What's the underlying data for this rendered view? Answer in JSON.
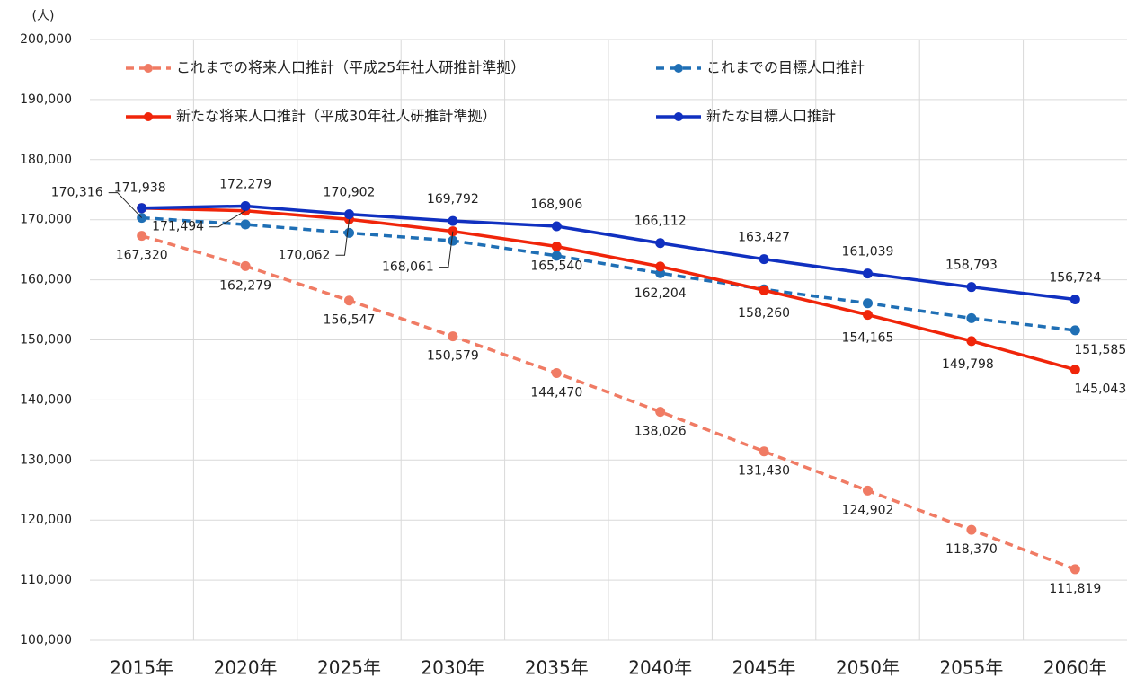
{
  "chart_data": {
    "type": "line",
    "y_label": "(人)",
    "categories": [
      "2015年",
      "2020年",
      "2025年",
      "2030年",
      "2035年",
      "2040年",
      "2045年",
      "2050年",
      "2055年",
      "2060年"
    ],
    "ylim": [
      100000,
      200000
    ],
    "yticks": [
      {
        "value": 100000,
        "label": "100,000"
      },
      {
        "value": 110000,
        "label": "110,000"
      },
      {
        "value": 120000,
        "label": "120,000"
      },
      {
        "value": 130000,
        "label": "130,000"
      },
      {
        "value": 140000,
        "label": "140,000"
      },
      {
        "value": 150000,
        "label": "150,000"
      },
      {
        "value": 160000,
        "label": "160,000"
      },
      {
        "value": 170000,
        "label": "170,000"
      },
      {
        "value": 180000,
        "label": "180,000"
      },
      {
        "value": 190000,
        "label": "190,000"
      },
      {
        "value": 200000,
        "label": "200,000"
      }
    ],
    "grid": true,
    "series": [
      {
        "name": "これまでの将来人口推計（平成25年社人研推計準拠）",
        "color": "#f07b64",
        "dashed": true,
        "values": [
          167320,
          162279,
          156547,
          150579,
          144470,
          138026,
          131430,
          124902,
          118370,
          111819
        ],
        "value_labels": [
          "167,320",
          "162,279",
          "156,547",
          "150,579",
          "144,470",
          "138,026",
          "131,430",
          "124,902",
          "118,370",
          "111,819"
        ]
      },
      {
        "name": "これまでの目標人口推計",
        "color": "#1f6fb5",
        "dashed": true,
        "values": [
          170316,
          169200,
          167800,
          166500,
          164000,
          161100,
          158400,
          156100,
          153600,
          151585
        ],
        "value_labels": [
          "170,316",
          null,
          null,
          null,
          null,
          null,
          null,
          null,
          null,
          "151,585"
        ]
      },
      {
        "name": "新たな将来人口推計（平成30年社人研推計準拠）",
        "color": "#f0250a",
        "dashed": false,
        "values": [
          171938,
          171494,
          170062,
          168061,
          165540,
          162204,
          158260,
          154165,
          149798,
          145043
        ],
        "value_labels": [
          null,
          "171,494",
          "170,062",
          "168,061",
          "165,540",
          "162,204",
          "158,260",
          "154,165",
          "149,798",
          "145,043"
        ]
      },
      {
        "name": "新たな目標人口推計",
        "color": "#1030c0",
        "dashed": false,
        "values": [
          171938,
          172279,
          170902,
          169792,
          168906,
          166112,
          163427,
          161039,
          158793,
          156724
        ],
        "value_labels": [
          "171,938",
          "172,279",
          "170,902",
          "169,792",
          "168,906",
          "166,112",
          "163,427",
          "161,039",
          "158,793",
          "156,724"
        ]
      }
    ]
  }
}
